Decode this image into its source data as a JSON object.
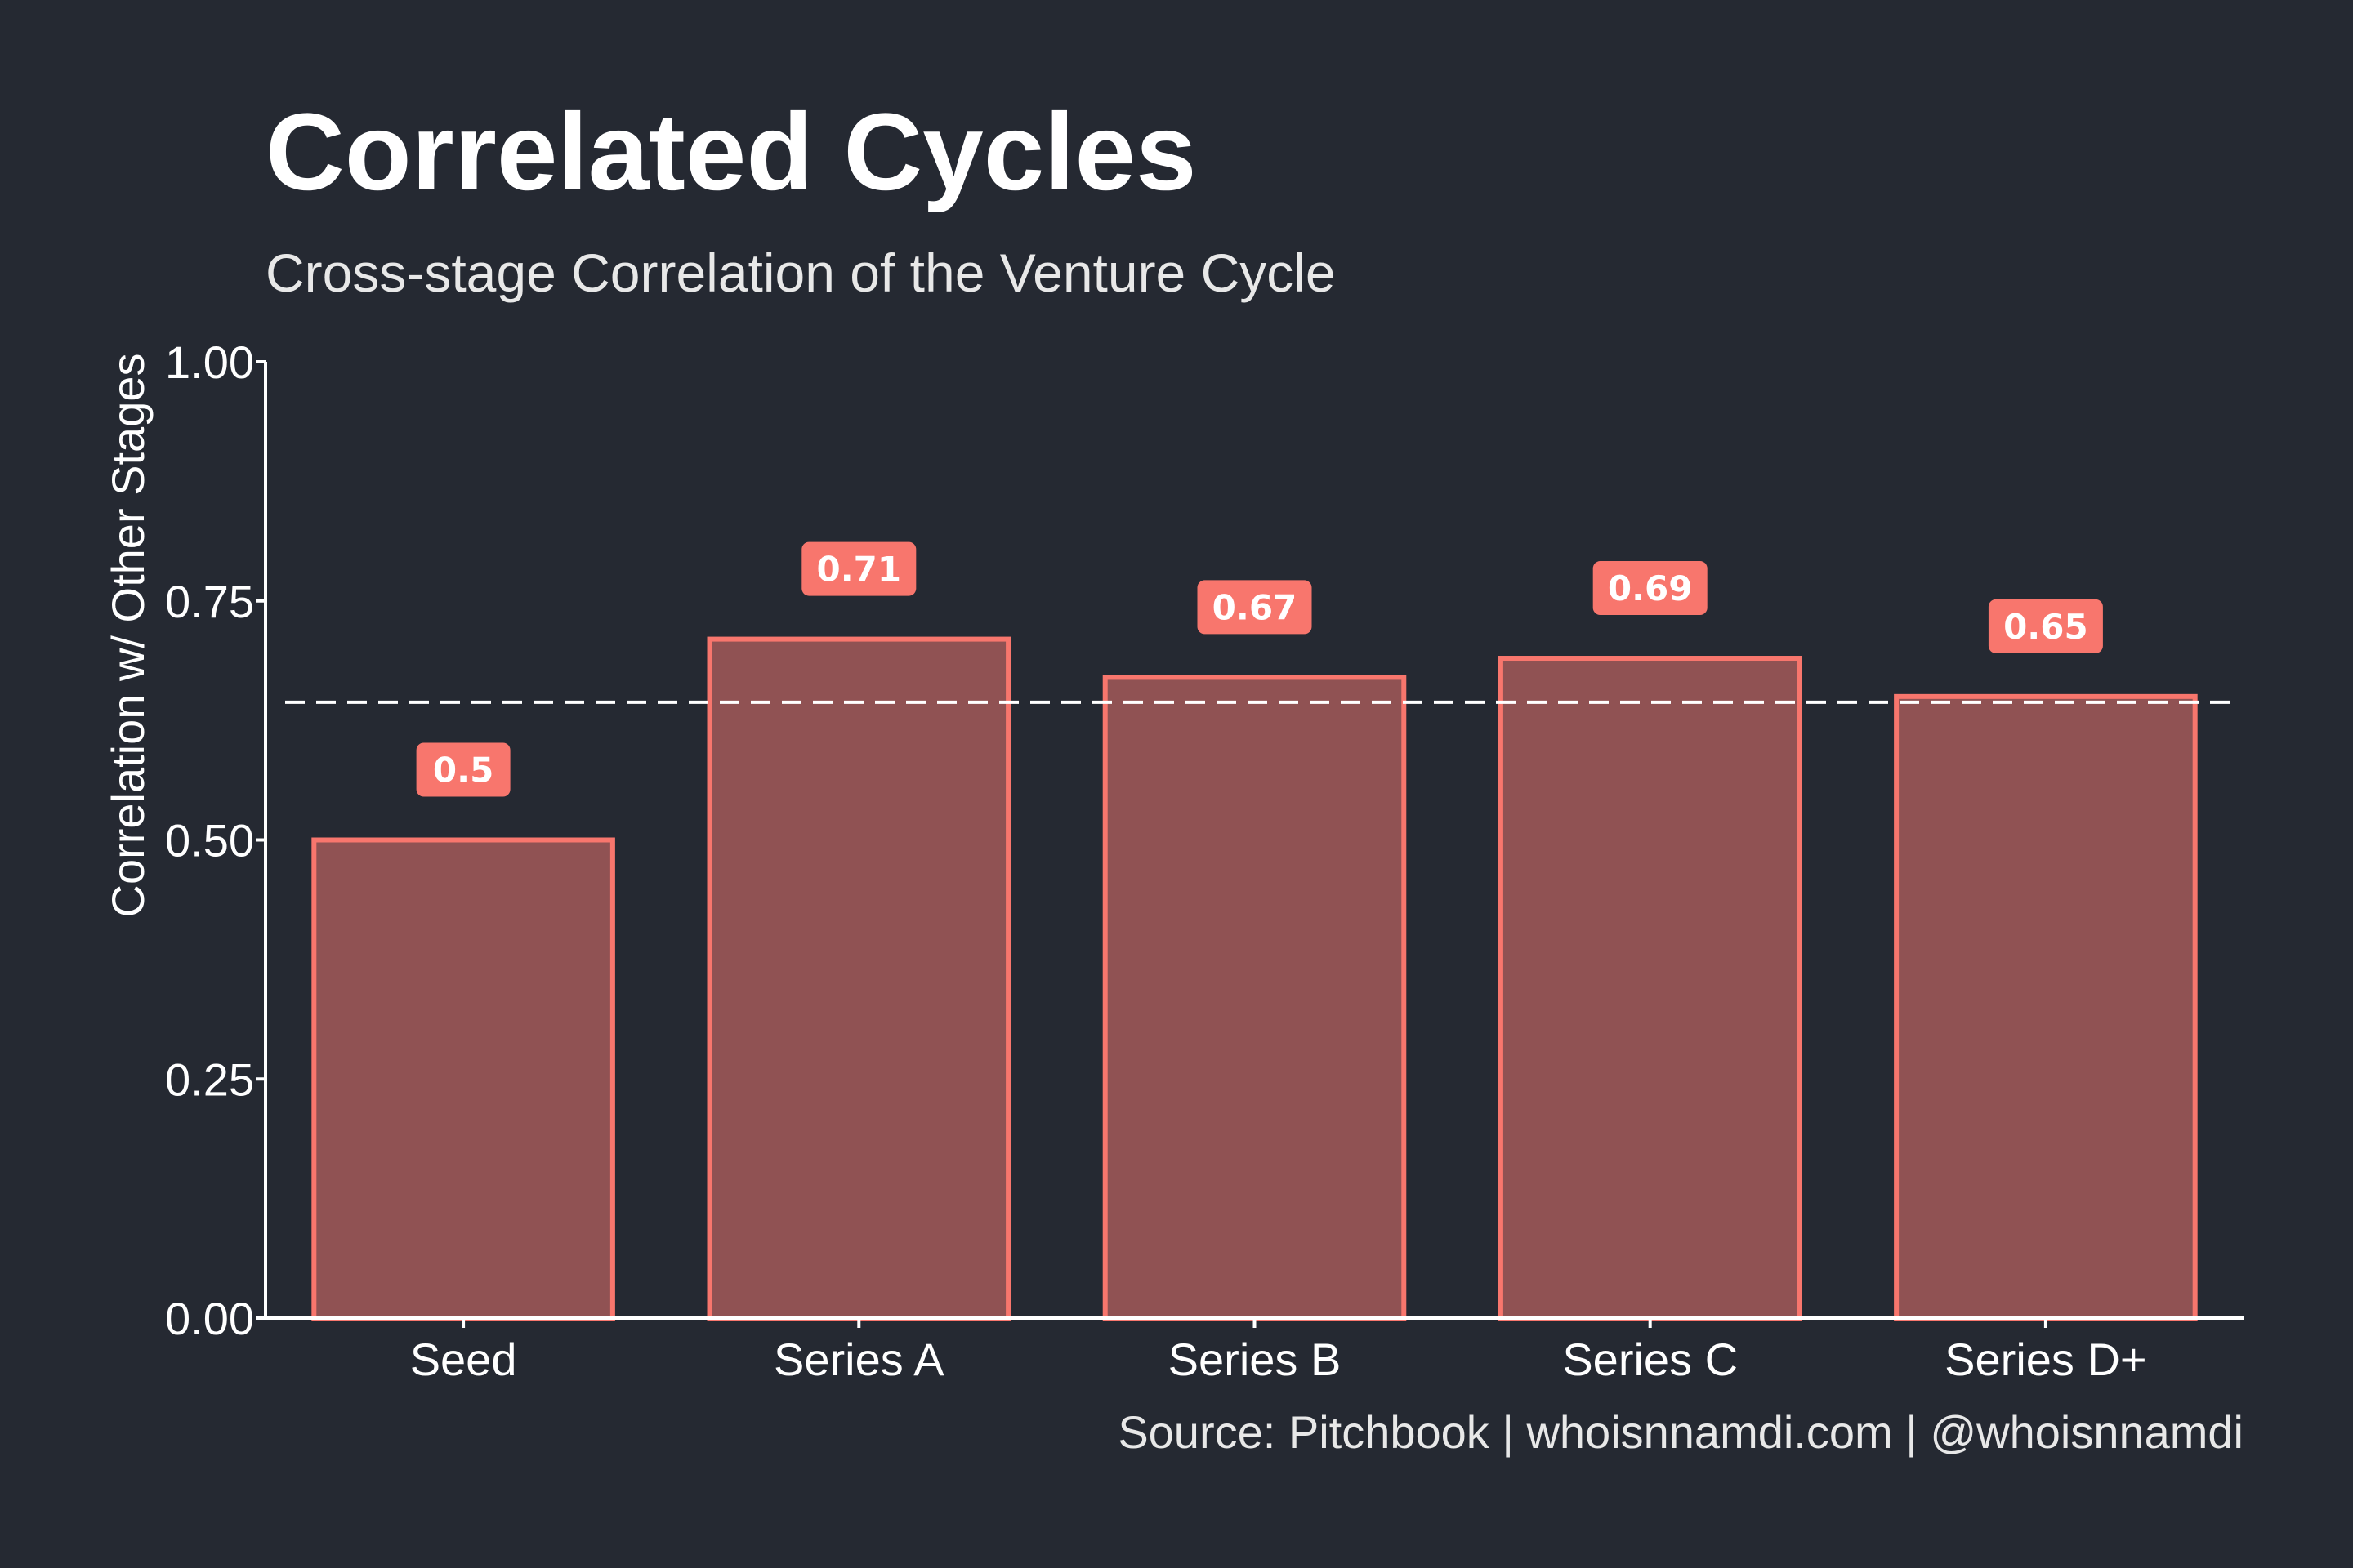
{
  "chart_data": {
    "type": "bar",
    "title": "Correlated Cycles",
    "subtitle": "Cross-stage Correlation of the Venture Cycle",
    "ylabel": "Correlation w/ Other Stages",
    "xlabel": "",
    "caption": "Source: Pitchbook | whoisnnamdi.com | @whoisnnamdi",
    "categories": [
      "Seed",
      "Series A",
      "Series B",
      "Series C",
      "Series D+"
    ],
    "values": [
      0.5,
      0.71,
      0.67,
      0.69,
      0.65
    ],
    "data_labels": [
      "0.5",
      "0.71",
      "0.67",
      "0.69",
      "0.65"
    ],
    "ylim": [
      0,
      1
    ],
    "yticks": [
      0,
      0.25,
      0.5,
      0.75,
      1
    ],
    "ytick_labels": [
      "0.00",
      "0.25",
      "0.50",
      "0.75",
      "1.00"
    ],
    "reference_line": {
      "value": 0.644,
      "style": "dashed"
    },
    "grid": false,
    "legend": "none",
    "colors": {
      "background": "#252932",
      "bar_fill": "#905253",
      "bar_stroke": "#f8766d",
      "label_box": "#f8766d",
      "axis": "#ffffff",
      "reference_line": "#ffffff"
    }
  }
}
